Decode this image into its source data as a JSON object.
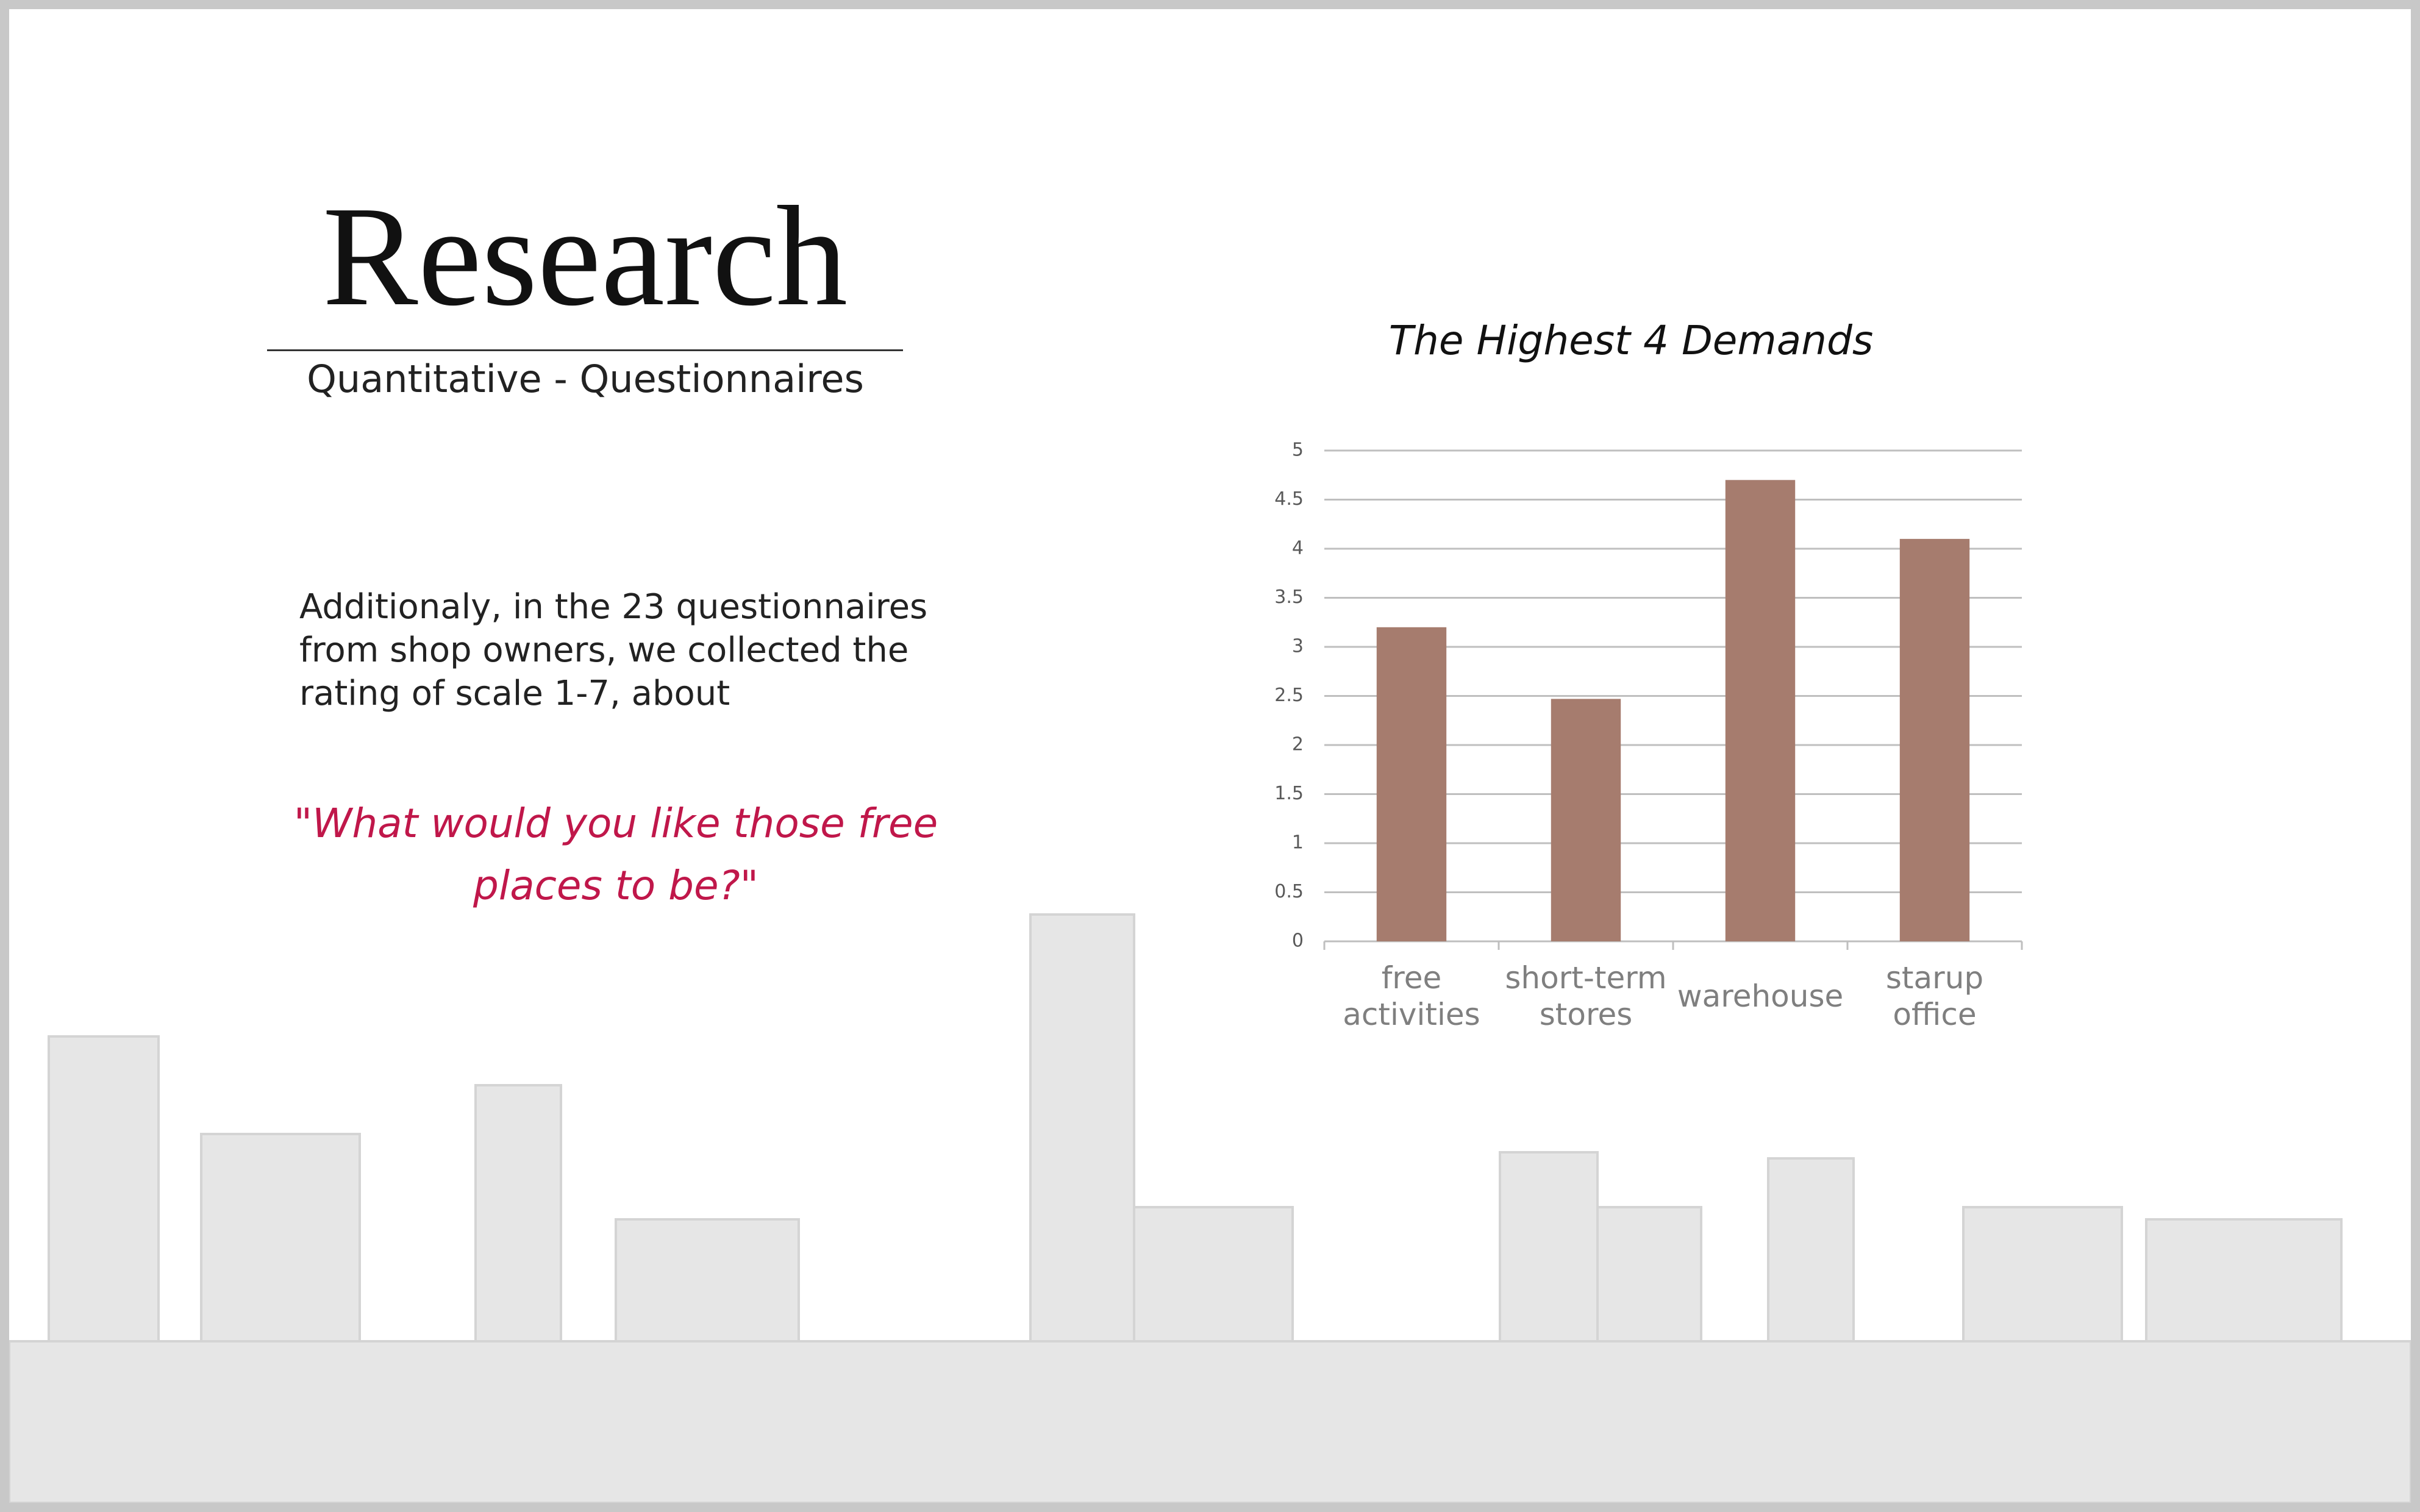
{
  "slide": {
    "title": "Research",
    "subtitle": "Quantitative - Questionnaires",
    "body": "Additionaly, in the 23 questionnaires from shop owners, we collected the rating of scale 1-7, about",
    "quote": "\"What would you like those free places to be?\""
  },
  "chart_data": {
    "type": "bar",
    "title": "The Highest 4 Demands",
    "categories": [
      "free activities",
      "short-term stores",
      "warehouse",
      "starup office"
    ],
    "values": [
      3.2,
      2.47,
      4.7,
      4.1
    ],
    "color": "#a67c6e",
    "ylim": [
      0,
      5
    ],
    "yticks": [
      0,
      0.5,
      1,
      1.5,
      2,
      2.5,
      3,
      3.5,
      4,
      4.5,
      5
    ],
    "grid": true
  }
}
